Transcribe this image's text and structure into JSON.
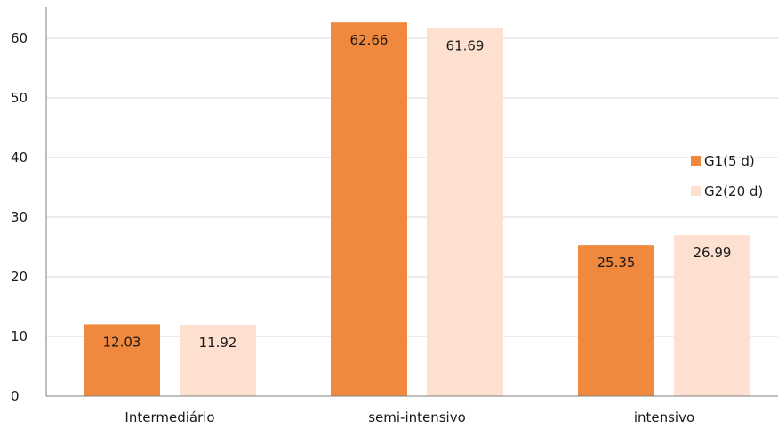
{
  "chart_data": {
    "type": "bar",
    "title": "",
    "xlabel": "",
    "ylabel": "",
    "categories": [
      "Intermediário",
      "semi-intensivo",
      "intensivo"
    ],
    "series": [
      {
        "name": "G1(5 d)",
        "values": [
          12.03,
          62.66,
          25.35
        ],
        "labels": [
          "12.03",
          "62.66",
          "25.35"
        ],
        "color": "#F0883D"
      },
      {
        "name": "G2(20 d)",
        "values": [
          11.92,
          61.69,
          26.99
        ],
        "labels": [
          "11.92",
          "61.69",
          "26.99"
        ],
        "color": "#FDE0CF"
      }
    ],
    "ylim": [
      0,
      70
    ],
    "yticks": [
      0,
      10,
      20,
      30,
      40,
      50,
      60
    ],
    "grid": true,
    "legend_position": "right"
  }
}
